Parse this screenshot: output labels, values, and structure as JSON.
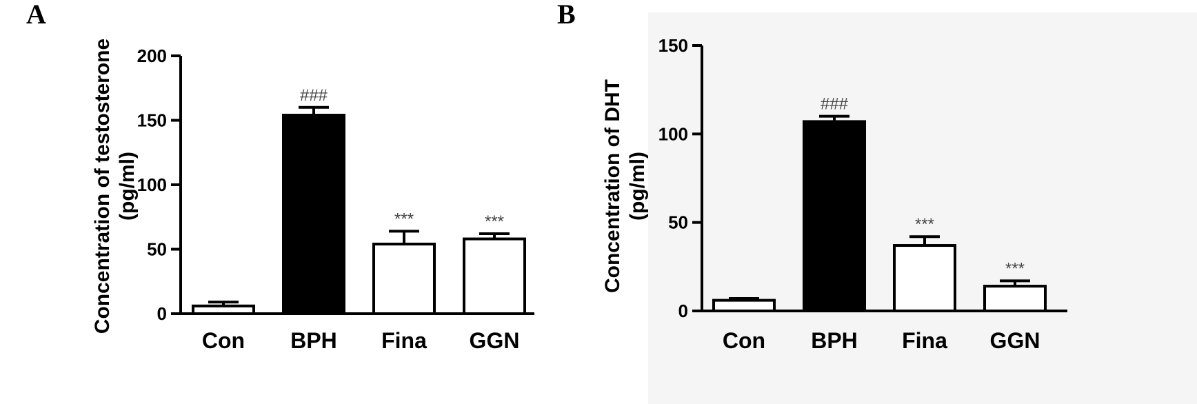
{
  "panels": [
    {
      "letter": "A",
      "ylabel_lines": [
        "Concentration of testosterone",
        "(pg/ml)"
      ],
      "chart_data": {
        "type": "bar",
        "title": "",
        "xlabel": "",
        "ylabel": "Concentration of testosterone (pg/ml)",
        "categories": [
          "Con",
          "BPH",
          "Fina",
          "GGN"
        ],
        "values": [
          6,
          154,
          54,
          58
        ],
        "errors": [
          3,
          6,
          10,
          4
        ],
        "bar_colors": [
          "#ffffff",
          "#000000",
          "#ffffff",
          "#ffffff"
        ],
        "annotations": [
          "",
          "###",
          "***",
          "***"
        ],
        "ylim": [
          0,
          200
        ],
        "yticks": [
          0,
          50,
          100,
          150,
          200
        ],
        "grid": false,
        "background": "#ffffff"
      }
    },
    {
      "letter": "B",
      "ylabel_lines": [
        "Concentration of DHT",
        "(pg/ml)"
      ],
      "chart_data": {
        "type": "bar",
        "title": "",
        "xlabel": "",
        "ylabel": "Concentration of DHT (pg/ml)",
        "categories": [
          "Con",
          "BPH",
          "Fina",
          "GGN"
        ],
        "values": [
          6,
          107,
          37,
          14
        ],
        "errors": [
          1,
          3,
          5,
          3
        ],
        "bar_colors": [
          "#ffffff",
          "#000000",
          "#ffffff",
          "#ffffff"
        ],
        "annotations": [
          "",
          "###",
          "***",
          "***"
        ],
        "ylim": [
          0,
          150
        ],
        "yticks": [
          0,
          50,
          100,
          150
        ],
        "grid": false,
        "background": "#f5f5f5"
      }
    }
  ]
}
